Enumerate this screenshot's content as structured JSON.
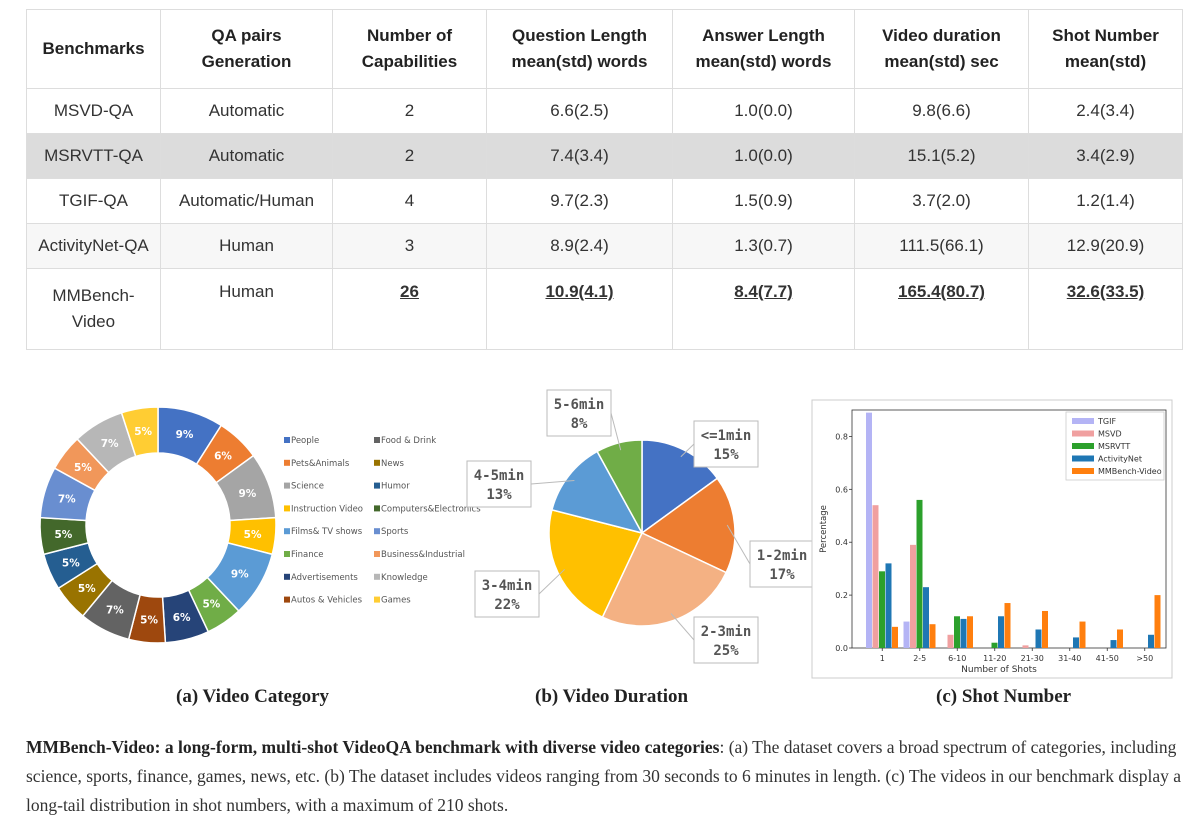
{
  "table": {
    "headers": [
      [
        "Benchmarks"
      ],
      [
        "QA pairs",
        "Generation"
      ],
      [
        "Number of",
        "Capabilities"
      ],
      [
        "Question Length",
        "mean(std) words"
      ],
      [
        "Answer Length",
        "mean(std) words"
      ],
      [
        "Video duration",
        "mean(std) sec"
      ],
      [
        "Shot Number",
        "mean(std)"
      ]
    ],
    "rows": [
      [
        "MSVD-QA",
        "Automatic",
        "2",
        "6.6(2.5)",
        "1.0(0.0)",
        "9.8(6.6)",
        "2.4(3.4)"
      ],
      [
        "MSRVTT-QA",
        "Automatic",
        "2",
        "7.4(3.4)",
        "1.0(0.0)",
        "15.1(5.2)",
        "3.4(2.9)"
      ],
      [
        "TGIF-QA",
        "Automatic/Human",
        "4",
        "9.7(2.3)",
        "1.5(0.9)",
        "3.7(2.0)",
        "1.2(1.4)"
      ],
      [
        "ActivityNet-QA",
        "Human",
        "3",
        "8.9(2.4)",
        "1.3(0.7)",
        "111.5(66.1)",
        "12.9(20.9)"
      ],
      [
        "MMBench-Video",
        "Human",
        "26",
        "10.9(4.1)",
        "8.4(7.7)",
        "165.4(80.7)",
        "32.6(33.5)"
      ]
    ]
  },
  "chart_data": [
    {
      "type": "pie",
      "variant": "donut",
      "title": "(a)  Video Category",
      "slices": [
        {
          "label": "People",
          "value": 9,
          "text": "9%",
          "color": "#4472c4"
        },
        {
          "label": "Pets&Animals",
          "value": 6,
          "text": "6%",
          "color": "#ed7d31"
        },
        {
          "label": "Science",
          "value": 9,
          "text": "9%",
          "color": "#a5a5a5"
        },
        {
          "label": "Instruction Video",
          "value": 5,
          "text": "5%",
          "color": "#ffc000"
        },
        {
          "label": "Films& TV shows",
          "value": 9,
          "text": "9%",
          "color": "#5b9bd5"
        },
        {
          "label": "Finance",
          "value": 5,
          "text": "5%",
          "color": "#70ad47"
        },
        {
          "label": "Advertisements",
          "value": 6,
          "text": "6%",
          "color": "#264478"
        },
        {
          "label": "Autos & Vehicles",
          "value": 5,
          "text": "5%",
          "color": "#9e480e"
        },
        {
          "label": "Food & Drink",
          "value": 7,
          "text": "7%",
          "color": "#636363"
        },
        {
          "label": "News",
          "value": 5,
          "text": "5%",
          "color": "#997300"
        },
        {
          "label": "Humor",
          "value": 5,
          "text": "5%",
          "color": "#255e91"
        },
        {
          "label": "Computers&Electronics",
          "value": 5,
          "text": "5%",
          "color": "#43682b"
        },
        {
          "label": "Sports",
          "value": 7,
          "text": "7%",
          "color": "#698ed0"
        },
        {
          "label": "Business&Industrial",
          "value": 5,
          "text": "5%",
          "color": "#f1975a"
        },
        {
          "label": "Knowledge",
          "value": 7,
          "text": "7%",
          "color": "#b7b7b7"
        },
        {
          "label": "Games",
          "value": 5,
          "text": "5%",
          "color": "#ffcd33"
        }
      ]
    },
    {
      "type": "pie",
      "title": "(b)  Video Duration",
      "slices": [
        {
          "label": "<=1min",
          "value": 15,
          "text": "15%",
          "color": "#4472c4"
        },
        {
          "label": "1-2min",
          "value": 17,
          "text": "17%",
          "color": "#ed7d31"
        },
        {
          "label": "2-3min",
          "value": 25,
          "text": "25%",
          "color": "#f4b183"
        },
        {
          "label": "3-4min",
          "value": 22,
          "text": "22%",
          "color": "#ffc000"
        },
        {
          "label": "4-5min",
          "value": 13,
          "text": "13%",
          "color": "#5b9bd5"
        },
        {
          "label": "5-6min",
          "value": 8,
          "text": "8%",
          "color": "#70ad47"
        }
      ]
    },
    {
      "type": "bar",
      "title": "(c)  Shot Number",
      "xlabel": "Number of Shots",
      "ylabel": "Percentage",
      "ylim": [
        0,
        0.9
      ],
      "yticks": [
        "0.0",
        "0.2",
        "0.4",
        "0.6",
        "0.8"
      ],
      "yticks_values": [
        0,
        0.2,
        0.4,
        0.6,
        0.8
      ],
      "categories": [
        "1",
        "2-5",
        "6-10",
        "11-20",
        "21-30",
        "31-40",
        "41-50",
        ">50"
      ],
      "series": [
        {
          "name": "TGIF",
          "color": "#b4b4f5",
          "values": [
            0.89,
            0.1,
            0,
            0,
            0,
            0,
            0,
            0
          ]
        },
        {
          "name": "MSVD",
          "color": "#f0a0a0",
          "values": [
            0.54,
            0.39,
            0.05,
            0,
            0.01,
            0,
            0,
            0
          ]
        },
        {
          "name": "MSRVTT",
          "color": "#2ca02c",
          "values": [
            0.29,
            0.56,
            0.12,
            0.02,
            0,
            0,
            0,
            0
          ]
        },
        {
          "name": "ActivityNet",
          "color": "#1f77b4",
          "values": [
            0.32,
            0.23,
            0.11,
            0.12,
            0.07,
            0.04,
            0.03,
            0.05
          ]
        },
        {
          "name": "MMBench-Video",
          "color": "#ff7f0e",
          "values": [
            0.08,
            0.09,
            0.12,
            0.17,
            0.14,
            0.1,
            0.07,
            0.2
          ]
        }
      ]
    }
  ],
  "caption": {
    "bold": "MMBench-Video: a long-form, multi-shot VideoQA benchmark with diverse video categories",
    "rest": ": (a) The dataset covers a broad spectrum of categories, including science, sports, finance, games, news, etc. (b) The dataset includes videos ranging from 30 seconds to 6 minutes in length. (c) The videos in our benchmark display a long-tail distribution in shot numbers, with a maximum of 210 shots."
  }
}
